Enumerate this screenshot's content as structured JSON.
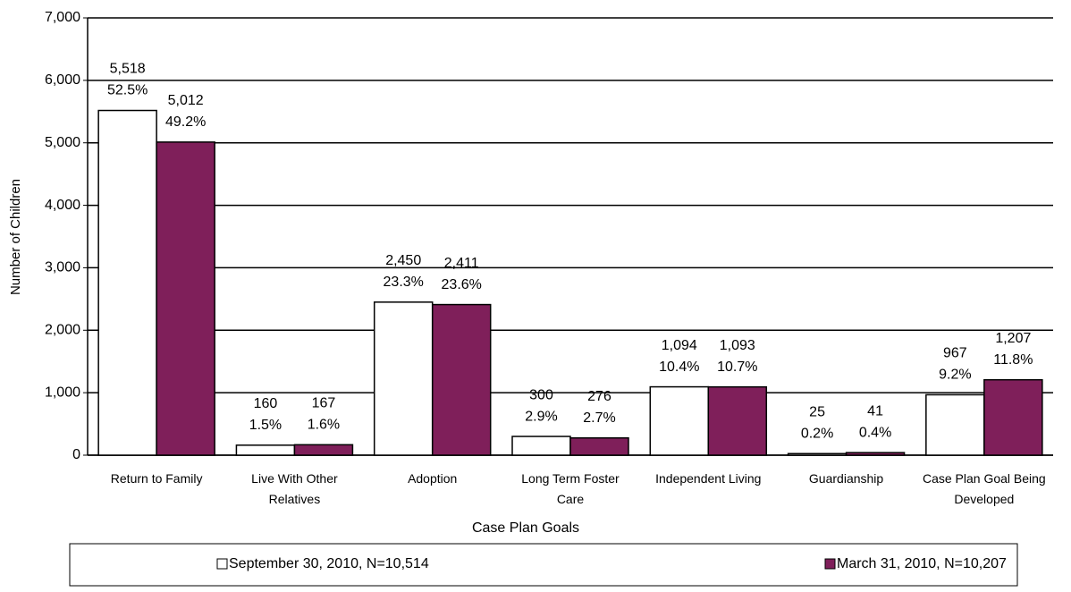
{
  "chart_data": {
    "type": "bar",
    "x_label": "Case Plan Goals",
    "y_label": "Number of Children",
    "categories": [
      "Return to Family",
      "Live With Other Relatives",
      "Adoption",
      "Long Term Foster Care",
      "Independent Living",
      "Guardianship",
      "Case Plan Goal Being Developed"
    ],
    "series": [
      {
        "name": "September 30, 2010, N=10,514",
        "color": "#ffffff",
        "values": [
          5518,
          160,
          2450,
          300,
          1094,
          25,
          967
        ],
        "value_labels": [
          "5,518",
          "160",
          "2,450",
          "300",
          "1,094",
          "25",
          "967"
        ],
        "percent_labels": [
          "52.5%",
          "1.5%",
          "23.3%",
          "2.9%",
          "10.4%",
          "0.2%",
          "9.2%"
        ]
      },
      {
        "name": "March 31, 2010, N=10,207",
        "color": "#7f1f5a",
        "values": [
          5012,
          167,
          2411,
          276,
          1093,
          41,
          1207
        ],
        "value_labels": [
          "5,012",
          "167",
          "2,411",
          "276",
          "1,093",
          "41",
          "1,207"
        ],
        "percent_labels": [
          "49.2%",
          "1.6%",
          "23.6%",
          "2.7%",
          "10.7%",
          "0.4%",
          "11.8%"
        ]
      }
    ],
    "ylim": [
      0,
      7000
    ],
    "yticks": [
      {
        "value": 0,
        "label": "0"
      },
      {
        "value": 1000,
        "label": "1,000"
      },
      {
        "value": 2000,
        "label": "2,000"
      },
      {
        "value": 3000,
        "label": "3,000"
      },
      {
        "value": 4000,
        "label": "4,000"
      },
      {
        "value": 5000,
        "label": "5,000"
      },
      {
        "value": 6000,
        "label": "6,000"
      },
      {
        "value": 7000,
        "label": "7,000"
      }
    ],
    "grid": true,
    "legend": "bottom"
  }
}
